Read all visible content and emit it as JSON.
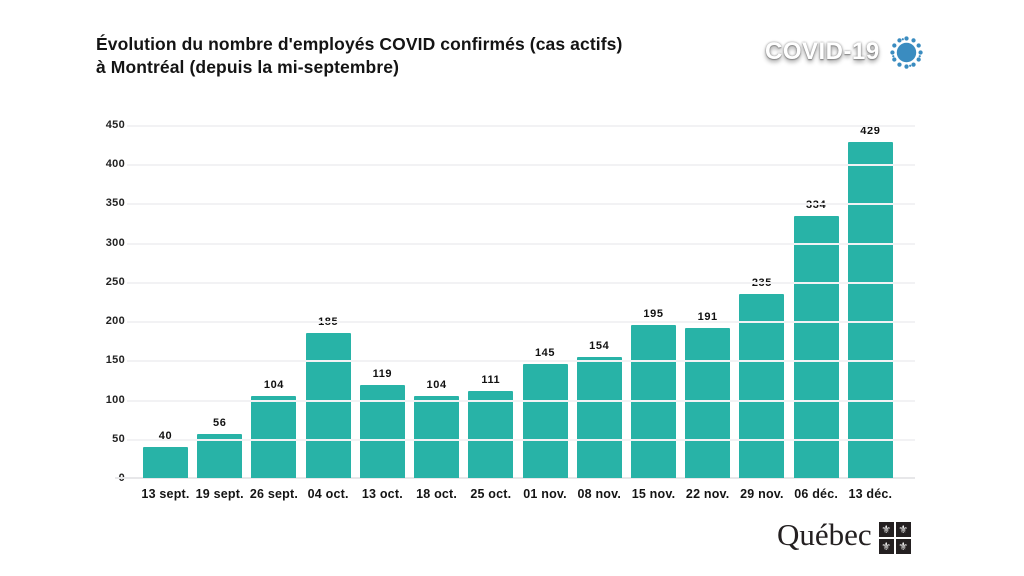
{
  "header": {
    "title_lines": [
      "Évolution du nombre d'employés COVID confirmés (cas actifs)",
      "à Montréal (depuis la mi-septembre)"
    ],
    "badge": {
      "label": "COVID-19",
      "icon": "virus-icon",
      "icon_color": "#3a8cc0"
    }
  },
  "chart_data": {
    "type": "bar",
    "title": "Évolution du nombre d'employés COVID confirmés (cas actifs) à Montréal (depuis la mi-septembre)",
    "categories": [
      "13 sept.",
      "19 sept.",
      "26 sept.",
      "04 oct.",
      "13 oct.",
      "18 oct.",
      "25 oct.",
      "01 nov.",
      "08 nov.",
      "15 nov.",
      "22 nov.",
      "29 nov.",
      "06 déc.",
      "13 déc."
    ],
    "values": [
      40,
      56,
      104,
      185,
      119,
      104,
      111,
      145,
      154,
      195,
      191,
      235,
      334,
      429
    ],
    "xlabel": "",
    "ylabel": "",
    "ylim": [
      0,
      450
    ],
    "yticks": [
      0,
      50,
      100,
      150,
      200,
      250,
      300,
      350,
      400,
      450
    ],
    "bar_color": "#28b3a7",
    "grid": true,
    "value_labels": true,
    "legend": "none"
  },
  "footer": {
    "logo_text": "Québec",
    "fleur_glyph": "⚜",
    "flag_color": "#242021"
  }
}
